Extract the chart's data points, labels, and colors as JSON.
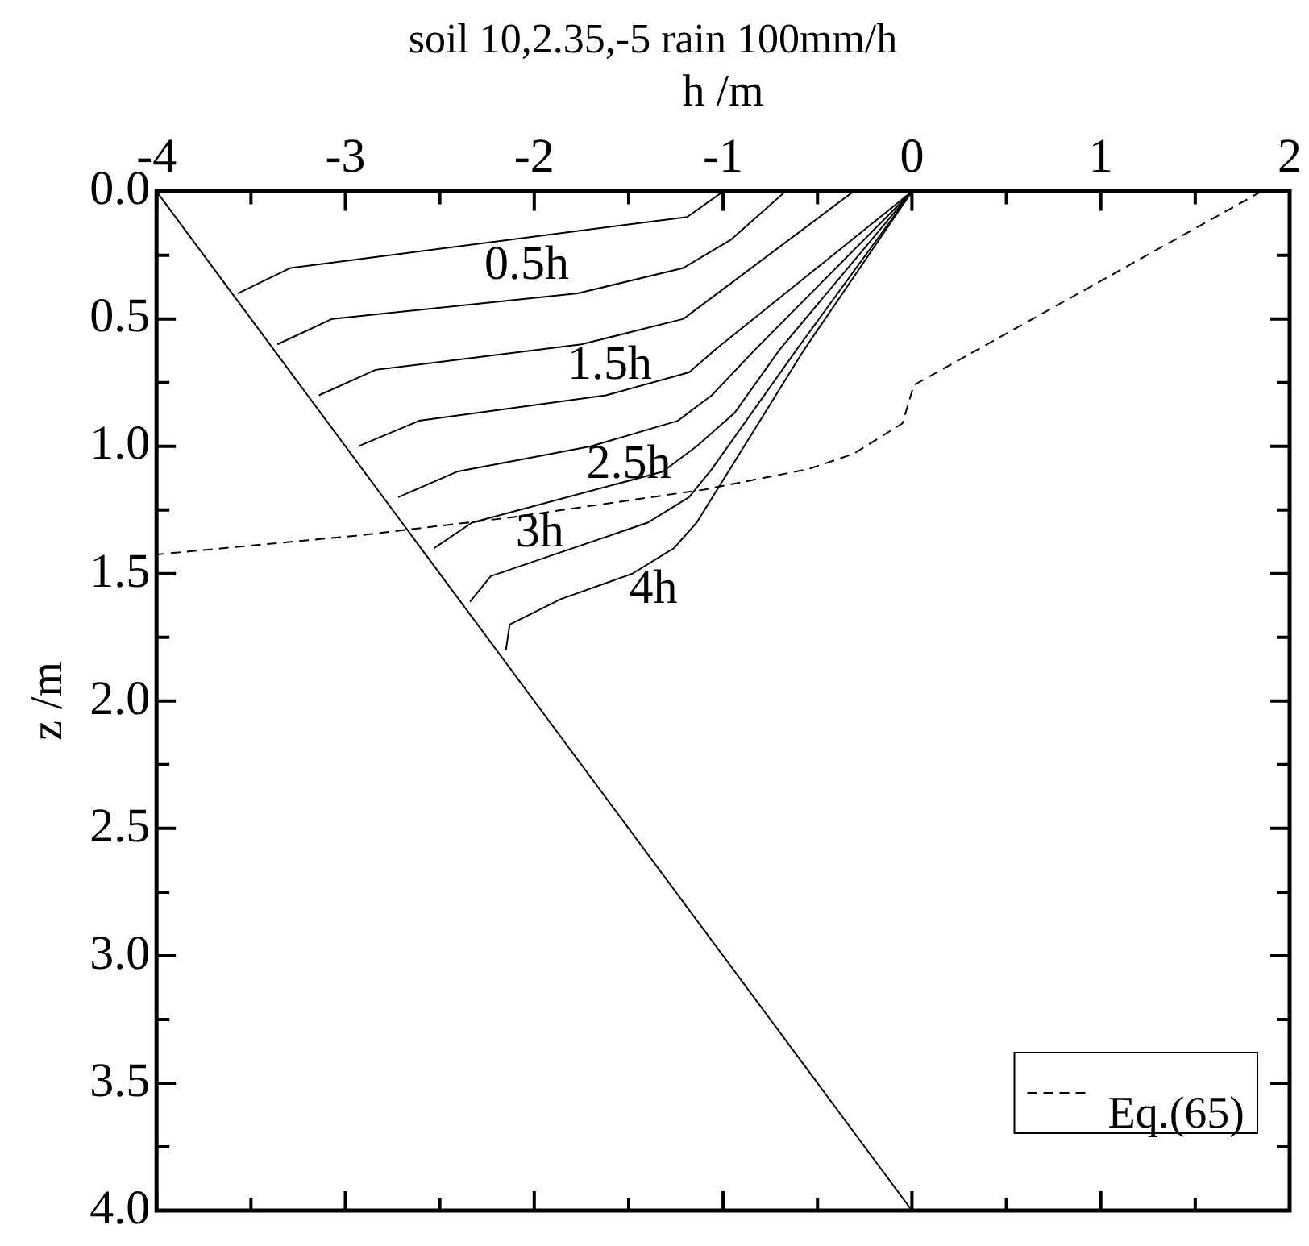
{
  "chart_data": {
    "type": "line",
    "title": "soil 10,2.35,-5 rain 100mm/h",
    "xlabel": "h /m",
    "ylabel": "z /m",
    "xlim": [
      -4,
      2
    ],
    "xticks": [
      -4,
      {
        "value": -3.5,
        "label": null
      },
      -3,
      {
        "value": -2.5,
        "label": null
      },
      -2,
      {
        "value": -1.5,
        "label": null
      },
      -1,
      {
        "value": -0.5,
        "label": null
      },
      0,
      {
        "value": 0.5,
        "label": null
      },
      1,
      {
        "value": 1.5,
        "label": null
      },
      2
    ],
    "ylim": [
      4,
      0
    ],
    "yticks": [
      "0.0",
      {
        "value": 0.25,
        "label": null
      },
      {
        "value": 0.5,
        "label": "0.5"
      },
      {
        "value": 0.75,
        "label": null
      },
      {
        "value": 1,
        "label": "1.0"
      },
      {
        "value": 1.25,
        "label": null
      },
      {
        "value": 1.5,
        "label": "1.5"
      },
      {
        "value": 1.75,
        "label": null
      },
      {
        "value": 2,
        "label": "2.0"
      },
      {
        "value": 2.25,
        "label": null
      },
      {
        "value": 2.5,
        "label": "2.5"
      },
      {
        "value": 2.75,
        "label": null
      },
      {
        "value": 3,
        "label": "3.0"
      },
      {
        "value": 3.25,
        "label": null
      },
      {
        "value": 3.5,
        "label": "3.5"
      },
      {
        "value": 3.75,
        "label": null
      },
      {
        "value": 4,
        "label": "4.0"
      }
    ],
    "grid": false,
    "legend": "bottom right",
    "marker": "none",
    "series": [
      {
        "color": "#000000",
        "x": [
          -4,
          0
        ],
        "values": [
          0,
          4
        ]
      },
      {
        "color": "#000000",
        "x": [
          -1.0,
          -1.19,
          -3.29,
          -3.57
        ],
        "values": [
          0,
          0.1,
          0.3,
          0.4
        ]
      },
      {
        "color": "#000000",
        "x": [
          -0.67,
          -0.96,
          -1.21,
          -1.77,
          -3.07,
          -3.36
        ],
        "values": [
          0,
          0.19,
          0.3,
          0.4,
          0.5,
          0.6
        ]
      },
      {
        "color": "#000000",
        "x": [
          -0.31,
          -1.21,
          -1.75,
          -2.84,
          -3.14
        ],
        "values": [
          0,
          0.5,
          0.6,
          0.7,
          0.8
        ]
      },
      {
        "color": "#000000",
        "x": [
          0,
          -1.04,
          -1.18,
          -1.62,
          -2.61,
          -2.93
        ],
        "values": [
          0,
          0.62,
          0.71,
          0.8,
          0.9,
          1.0
        ]
      },
      {
        "color": "#000000",
        "x": [
          0,
          -0.83,
          -1.06,
          -1.24,
          -1.7,
          -2.41,
          -2.72
        ],
        "values": [
          0,
          0.62,
          0.8,
          0.9,
          1.0,
          1.1,
          1.2
        ]
      },
      {
        "color": "#000000",
        "x": [
          0,
          -0.7,
          -0.94,
          -1.14,
          -1.32,
          -2.33,
          -2.53
        ],
        "values": [
          0,
          0.62,
          0.87,
          1.0,
          1.1,
          1.3,
          1.4
        ]
      },
      {
        "color": "#000000",
        "x": [
          0,
          -0.61,
          -1.06,
          -1.18,
          -1.4,
          -2.23,
          -2.34
        ],
        "values": [
          0,
          0.62,
          1.09,
          1.2,
          1.3,
          1.51,
          1.61
        ]
      },
      {
        "color": "#000000",
        "x": [
          0,
          -0.57,
          -1.14,
          -1.26,
          -1.48,
          -1.86,
          -2.13,
          -2.15
        ],
        "values": [
          0,
          0.62,
          1.3,
          1.4,
          1.5,
          1.6,
          1.7,
          1.8
        ]
      },
      {
        "name": "Eq.(65)",
        "color": "#000000",
        "line_style": "dashed",
        "x": [
          1.85,
          0.01,
          -0.05,
          -0.31,
          -0.55,
          -1.1,
          -2.13,
          -2.93,
          -4.0
        ],
        "values": [
          0,
          0.76,
          0.91,
          1.03,
          1.09,
          1.17,
          1.28,
          1.35,
          1.425
        ]
      }
    ],
    "annotations": [
      {
        "text": "0.5h",
        "x": -2.04,
        "y": 0.18
      },
      {
        "text": "1.5h",
        "x": -1.6,
        "y": 0.57
      },
      {
        "text": "2.5h",
        "x": -1.5,
        "y": 0.96
      },
      {
        "text": "3h",
        "x": -1.97,
        "y": 1.23
      },
      {
        "text": "4h",
        "x": -1.37,
        "y": 1.45
      }
    ]
  }
}
